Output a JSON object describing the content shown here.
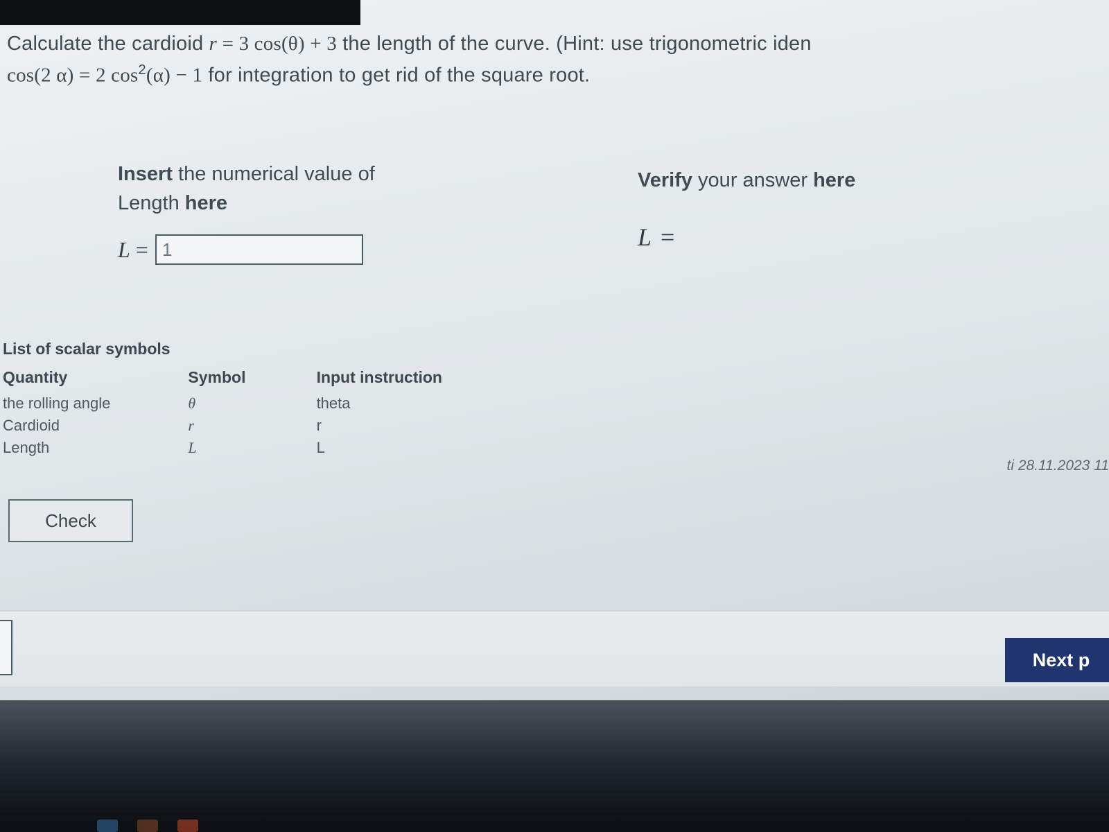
{
  "question": {
    "prefix": "Calculate the cardioid ",
    "eq1_r": "r",
    "eq1_eq": " = ",
    "eq1_rhs_a": "3 ",
    "eq1_cos": "cos",
    "eq1_arg": "(θ)",
    "eq1_plus": " + 3",
    "mid": " the length of the curve.  (Hint: use trigonometric iden",
    "line2_cos": "cos",
    "line2_arg1": "(2 α)",
    "line2_eq": " = ",
    "line2_rhs_a": "2 ",
    "line2_cos2": "cos",
    "line2_sup": "2",
    "line2_arg2": "(α)",
    "line2_minus": " − 1",
    "line2_tail": " for integration to get rid of the square root."
  },
  "insert": {
    "line_a": "Insert",
    "line_b": " the numerical value of",
    "line_c": "Length ",
    "line_d": "here",
    "L": "L",
    "eq": "=",
    "input_value": "1"
  },
  "verify": {
    "line_a": "Verify",
    "line_b": " your answer ",
    "line_c": "here",
    "L": "L",
    "eq": " ="
  },
  "symbols": {
    "title": "List of scalar symbols",
    "headers": {
      "q": "Quantity",
      "s": "Symbol",
      "i": "Input instruction"
    },
    "rows": [
      {
        "q": "the rolling angle",
        "s": "θ",
        "i": "theta"
      },
      {
        "q": "Cardioid",
        "s": "r",
        "i": "r"
      },
      {
        "q": "Length",
        "s": "L",
        "i": "L"
      }
    ]
  },
  "buttons": {
    "check": "Check",
    "next": "Next p"
  },
  "timestamp": "ti 28.11.2023 11",
  "colors": {
    "text": "#3d4a52",
    "input_border": "#4a5a64",
    "next_bg": "#20356f",
    "next_fg": "#ffffff",
    "page_bg_top": "#eef1f3",
    "page_bg_bot": "#c7cdd1"
  }
}
